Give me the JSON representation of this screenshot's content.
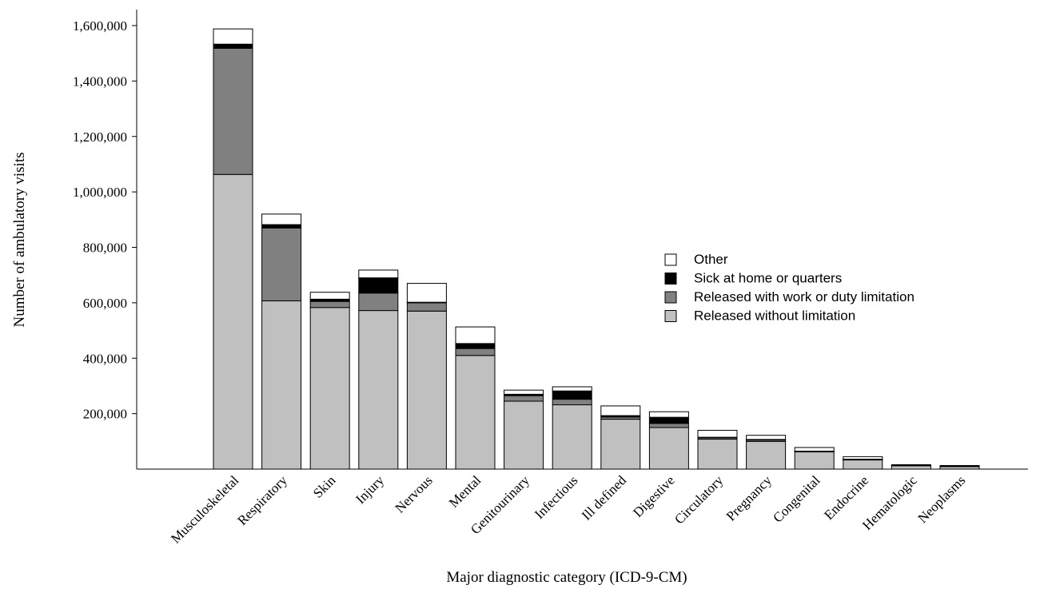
{
  "chart_data": {
    "type": "bar",
    "stacked": true,
    "title": "",
    "xlabel": "Major diagnostic category (ICD-9-CM)",
    "ylabel": "Number of ambulatory visits",
    "ylim": [
      0,
      1650000
    ],
    "yticks": [
      200000,
      400000,
      600000,
      800000,
      1000000,
      1200000,
      1400000,
      1600000
    ],
    "ytick_labels": [
      "200,000",
      "400,000",
      "600,000",
      "800,000",
      "1,000,000",
      "1,200,000",
      "1,400,000",
      "1,600,000"
    ],
    "grid": false,
    "legend_position": "right",
    "categories": [
      "Musculoskeletal",
      "Respiratory",
      "Skin",
      "Injury",
      "Nervous",
      "Mental",
      "Genitourinary",
      "Infectious",
      "Ill defined",
      "Digestive",
      "Circulatory",
      "Pregnancy",
      "Congenital",
      "Endocrine",
      "Hematologic",
      "Neoplasms"
    ],
    "series": [
      {
        "name": "Released without limitation",
        "color": "#c0c0c0",
        "values": [
          1063000,
          607000,
          583000,
          572000,
          570000,
          410000,
          245000,
          232000,
          180000,
          150000,
          108000,
          100000,
          62000,
          33000,
          12000,
          9000
        ]
      },
      {
        "name": "Released with work or duty limitation",
        "color": "#808080",
        "values": [
          455000,
          263000,
          22000,
          63000,
          30000,
          25000,
          20000,
          20000,
          8000,
          15000,
          5000,
          5000,
          2000,
          2000,
          1000,
          1000
        ]
      },
      {
        "name": "Sick at home or quarters",
        "color": "#000000",
        "values": [
          15000,
          12000,
          8000,
          55000,
          2000,
          18000,
          5000,
          30000,
          5000,
          22000,
          2000,
          2000,
          1000,
          1000,
          500,
          500
        ]
      },
      {
        "name": "Other",
        "color": "#ffffff",
        "values": [
          55000,
          38000,
          25000,
          28000,
          68000,
          60000,
          15000,
          15000,
          35000,
          20000,
          25000,
          15000,
          13000,
          9000,
          2500,
          2500
        ]
      }
    ]
  },
  "legend": {
    "items": [
      "Other",
      "Sick at home or quarters",
      "Released with work or duty limitation",
      "Released without limitation"
    ],
    "swatches": [
      "#ffffff",
      "#000000",
      "#808080",
      "#c0c0c0"
    ]
  }
}
